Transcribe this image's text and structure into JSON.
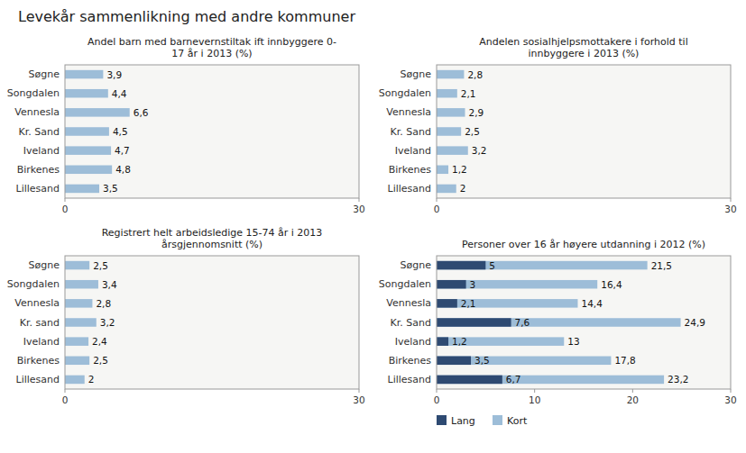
{
  "title": "Levekår sammenlikning med andre kommuner",
  "chart_data": [
    {
      "type": "bar",
      "orientation": "horizontal",
      "title": "Andel barn med barnevernstiltak ift innbyggere 0-\n17 år i 2013 (%)",
      "categories": [
        "Søgne",
        "Songdalen",
        "Vennesla",
        "Kr. Sand",
        "Iveland",
        "Birkenes",
        "Lillesand"
      ],
      "values": [
        3.9,
        4.4,
        6.6,
        4.5,
        4.7,
        4.8,
        3.5
      ],
      "value_labels": [
        "3,9",
        "4,4",
        "6,6",
        "4,5",
        "4,7",
        "4,8",
        "3,5"
      ],
      "color": "#9dbdd8",
      "xlim": [
        0,
        30
      ],
      "xticks": [
        0,
        30
      ],
      "data_labels": true
    },
    {
      "type": "bar",
      "orientation": "horizontal",
      "title": "Andelen sosialhjelpsmottakere i forhold til\ninnbyggere i 2013 (%)",
      "categories": [
        "Søgne",
        "Songdalen",
        "Vennesla",
        "Kr. Sand",
        "Iveland",
        "Birkenes",
        "Lillesand"
      ],
      "values": [
        2.8,
        2.1,
        2.9,
        2.5,
        3.2,
        1.2,
        2.0
      ],
      "value_labels": [
        "2,8",
        "2,1",
        "2,9",
        "2,5",
        "3,2",
        "1,2",
        "2"
      ],
      "color": "#9dbdd8",
      "xlim": [
        0,
        30
      ],
      "xticks": [
        0,
        30
      ],
      "data_labels": true
    },
    {
      "type": "bar",
      "orientation": "horizontal",
      "title": "Registrert helt arbeidsledige 15-74 år i 2013\nårsgjennomsnitt (%)",
      "categories": [
        "Søgne",
        "Songdalen",
        "Vennesla",
        "Kr. sand",
        "Iveland",
        "Birkenes",
        "Lillesand"
      ],
      "values": [
        2.5,
        3.4,
        2.8,
        3.2,
        2.4,
        2.5,
        2.0
      ],
      "value_labels": [
        "2,5",
        "3,4",
        "2,8",
        "3,2",
        "2,4",
        "2,5",
        "2"
      ],
      "color": "#9dbdd8",
      "xlim": [
        0,
        30
      ],
      "xticks": [
        0,
        30
      ],
      "data_labels": true
    },
    {
      "type": "bar",
      "orientation": "horizontal",
      "title": "Personer over 16 år høyere utdanning i 2012 (%)",
      "categories": [
        "Søgne",
        "Songdalen",
        "Vennesla",
        "Kr. Sand",
        "Iveland",
        "Birkenes",
        "Lillesand"
      ],
      "series": [
        {
          "name": "Lang",
          "color": "#2e4a72",
          "values": [
            5.0,
            3.0,
            2.1,
            7.6,
            1.2,
            3.5,
            6.7
          ],
          "value_labels": [
            "5",
            "3",
            "2,1",
            "7,6",
            "1,2",
            "3,5",
            "6,7"
          ]
        },
        {
          "name": "Kort",
          "color": "#9dbdd8",
          "values": [
            21.5,
            16.4,
            14.4,
            24.9,
            13.0,
            17.8,
            23.2
          ],
          "value_labels": [
            "21,5",
            "16,4",
            "14,4",
            "24,9",
            "13",
            "17,8",
            "23,2"
          ]
        }
      ],
      "xlim": [
        0,
        30
      ],
      "xticks": [
        0,
        10,
        20,
        30
      ],
      "data_labels": true,
      "legend": "lower left"
    }
  ]
}
